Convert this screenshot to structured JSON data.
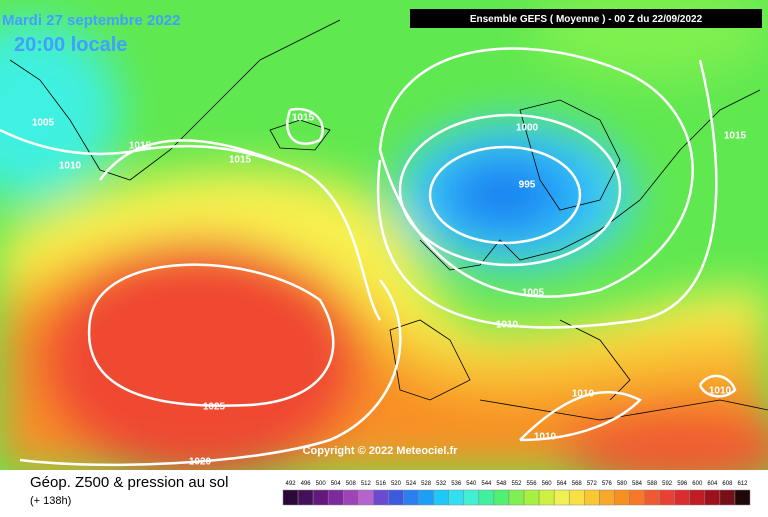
{
  "header": {
    "date": "Mardi 27 septembre 2022",
    "time": "20:00 locale",
    "run": "Ensemble GEFS  ( Moyenne )  - 00 Z du 22/09/2022"
  },
  "copyright": "Copyright © 2022 Meteociel.fr",
  "footer": {
    "title": "Géop. Z500 & pression au sol",
    "lead": "(+ 138h)"
  },
  "isobar_labels": [
    "1005",
    "1010",
    "1015",
    "1015",
    "1015",
    "1000",
    "995",
    "1015",
    "1005",
    "1010",
    "1025",
    "1020",
    "1010",
    "1010",
    "1010"
  ],
  "legend": {
    "labels": [
      "492",
      "496",
      "500",
      "504",
      "508",
      "512",
      "516",
      "520",
      "524",
      "528",
      "532",
      "536",
      "540",
      "544",
      "548",
      "552",
      "556",
      "560",
      "564",
      "568",
      "572",
      "576",
      "580",
      "584",
      "588",
      "592",
      "596",
      "600",
      "604",
      "608",
      "612"
    ],
    "colors": [
      "#2a0838",
      "#45105a",
      "#62187c",
      "#7e2a9c",
      "#9c44b8",
      "#b464cc",
      "#6a4ad0",
      "#3c5ae0",
      "#2a7ef0",
      "#1aa0f8",
      "#20c8f8",
      "#30e0f0",
      "#40f0d0",
      "#40f0a0",
      "#50f070",
      "#80f050",
      "#a8f040",
      "#d0f040",
      "#f0f050",
      "#f8e040",
      "#f8c830",
      "#f8a828",
      "#f89020",
      "#f87828",
      "#f05a30",
      "#e84034",
      "#d82c30",
      "#c01c24",
      "#a0101c",
      "#781018",
      "#200808"
    ]
  }
}
